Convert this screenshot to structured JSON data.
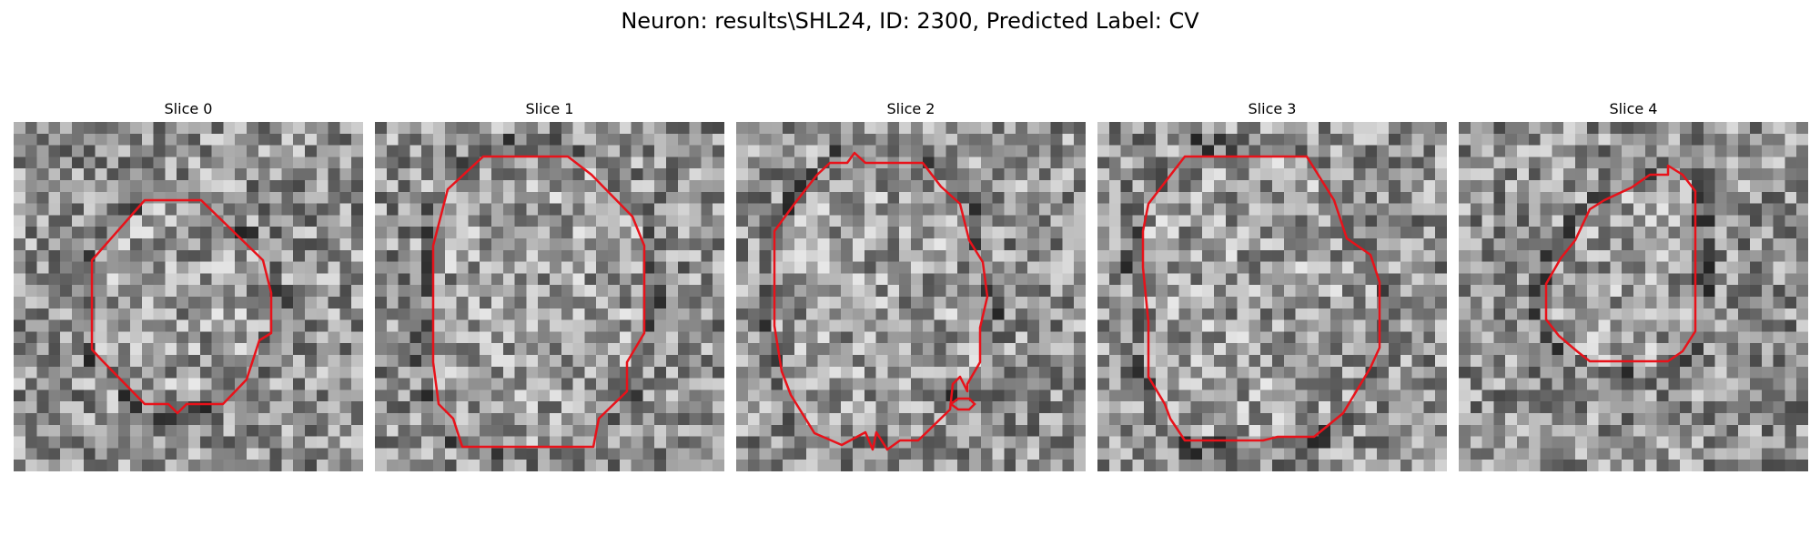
{
  "figure": {
    "title": "Neuron: results\\SHL24, ID: 2300, Predicted Label: CV"
  },
  "slices": [
    {
      "title": "Slice 0",
      "grid": 30,
      "contour_color": "#e8121a"
    },
    {
      "title": "Slice 1",
      "grid": 30,
      "contour_color": "#e8121a"
    },
    {
      "title": "Slice 2",
      "grid": 30,
      "contour_color": "#e8121a"
    },
    {
      "title": "Slice 3",
      "grid": 30,
      "contour_color": "#e8121a"
    },
    {
      "title": "Slice 4",
      "grid": 30,
      "contour_color": "#e8121a"
    }
  ]
}
